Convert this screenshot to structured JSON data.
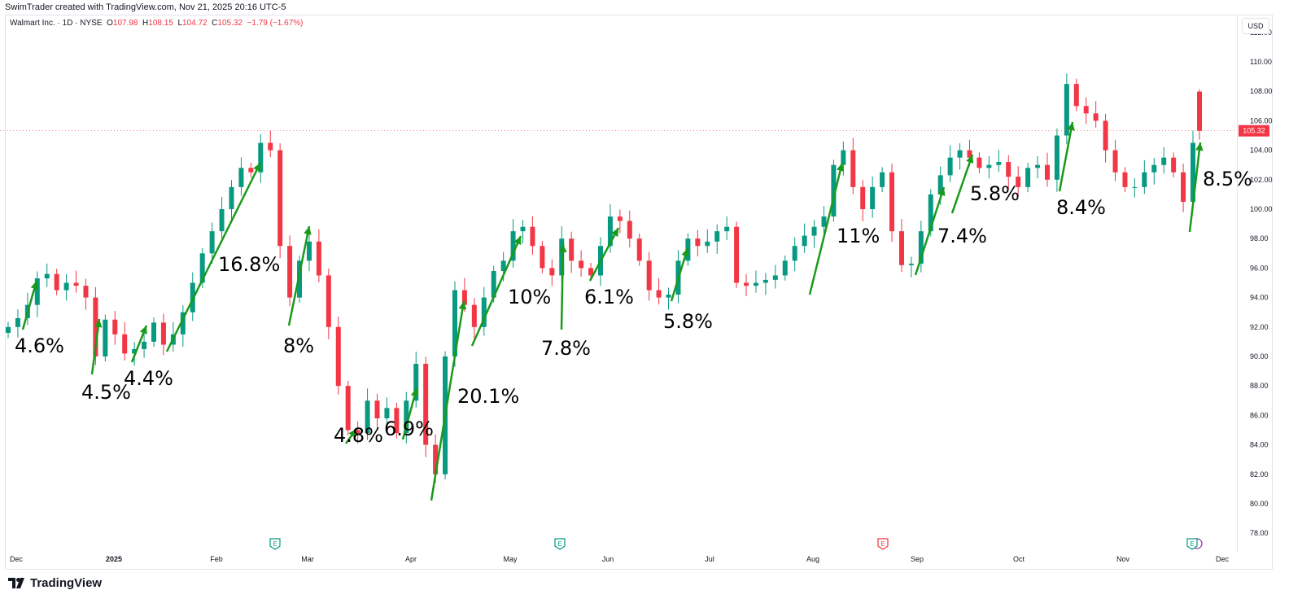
{
  "header": {
    "credit": "SwimTrader created with TradingView.com, Nov 21, 2025 20:16 UTC-5",
    "symbol": "Walmart Inc. · 1D · NYSE",
    "o_label": "O",
    "o": "107.98",
    "h_label": "H",
    "h": "108.15",
    "l_label": "L",
    "l": "104.72",
    "c_label": "C",
    "c": "105.32",
    "change": "−1.79 (−1.67%)"
  },
  "currency": "USD",
  "brand": "TradingView",
  "colors": {
    "up": "#089981",
    "down": "#f23645",
    "arrow": "#1a9a1a",
    "earnings_purple": "#9c27b0"
  },
  "chart_data": {
    "type": "candlestick",
    "symbol": "Walmart Inc.",
    "interval": "1D",
    "exchange": "NYSE",
    "ylim": [
      77,
      112.5
    ],
    "yticks": [
      "78.00",
      "80.00",
      "82.00",
      "84.00",
      "86.00",
      "88.00",
      "90.00",
      "92.00",
      "94.00",
      "96.00",
      "98.00",
      "100.00",
      "102.00",
      "104.00",
      "106.00",
      "108.00",
      "110.00",
      "112.00"
    ],
    "xticks": [
      "Dec",
      "2025",
      "Feb",
      "Mar",
      "Apr",
      "May",
      "Jun",
      "Jul",
      "Aug",
      "Sep",
      "Oct",
      "Nov",
      "Dec"
    ],
    "last_price": "105.32",
    "closes": [
      92,
      92.6,
      93.5,
      95.3,
      95.6,
      94.5,
      95,
      94.8,
      94,
      90,
      92.5,
      91.5,
      90.2,
      90.5,
      91,
      92.3,
      90.8,
      91.5,
      93,
      95,
      97,
      98.5,
      100,
      101.5,
      102.8,
      102.5,
      104.5,
      104,
      97.5,
      94,
      96.5,
      97.8,
      95.5,
      92,
      88,
      85,
      84.8,
      87,
      85.8,
      86.5,
      84.8,
      87,
      89.5,
      84,
      82,
      90,
      94.5,
      93.5,
      92,
      94,
      95.8,
      96.5,
      98.5,
      98.8,
      97.5,
      96,
      95.5,
      98,
      96.5,
      96,
      95.5,
      97.5,
      99.5,
      99.2,
      98,
      96.5,
      94.5,
      94,
      94.2,
      96.5,
      98,
      97.5,
      97.8,
      98.5,
      98.8,
      95,
      94.8,
      95,
      95.2,
      95.5,
      96.5,
      97.5,
      98.2,
      98.8,
      99.5,
      103,
      104,
      101.5,
      100,
      101.5,
      102.5,
      98.5,
      96.2,
      96.3,
      98.5,
      101,
      102.3,
      103.5,
      104,
      103.5,
      102.8,
      103,
      103.2,
      102.2,
      101.5,
      102.8,
      103,
      102,
      105,
      108.5,
      107,
      106.5,
      106,
      104,
      102.5,
      101.5,
      101.5,
      102.5,
      103,
      103.5,
      102.5,
      100.5,
      104.5
    ],
    "last_candle": {
      "o": 107.98,
      "h": 108.15,
      "l": 104.72,
      "c": 105.32
    },
    "earnings": [
      {
        "month": "Feb",
        "color": "#089981"
      },
      {
        "month": "May",
        "color": "#089981"
      },
      {
        "month": "Aug",
        "color": "#f23645"
      },
      {
        "month": "Nov",
        "color": "#089981"
      }
    ],
    "annotations": [
      "4.6%",
      "4.5%",
      "4.4%",
      "16.8%",
      "8%",
      "4.8%",
      "6.9%",
      "20.1%",
      "10%",
      "7.8%",
      "6.1%",
      "5.8%",
      "11%",
      "7.4%",
      "5.8%",
      "8.4%",
      "8.5%"
    ]
  }
}
